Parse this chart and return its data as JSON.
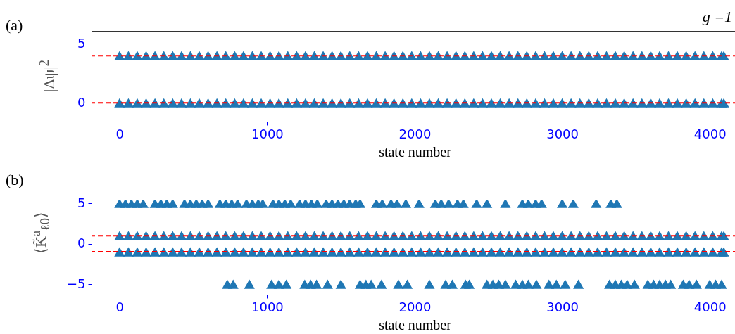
{
  "chart_data": [
    {
      "type": "scatter",
      "title": "(a)",
      "annotations": [
        "g =1"
      ],
      "xlabel": "state number",
      "ylabel": "|Δψ|$^{2}$",
      "marker": "triangle",
      "grid": false,
      "xlim": [
        -190,
        4190
      ],
      "ylim": [
        -1.6,
        6.1
      ],
      "xticks": [
        0,
        1000,
        2000,
        3000,
        4000
      ],
      "yticks": [
        0,
        5
      ],
      "ref_lines": [
        {
          "axis": "y",
          "value": 4,
          "color": "#ff0000",
          "line_style": "dashed"
        },
        {
          "axis": "y",
          "value": 0,
          "color": "#ff0000",
          "line_style": "dashed"
        }
      ],
      "series": [
        {
          "color": "#1f77b4",
          "x": [
            0,
            60,
            120,
            180,
            240,
            300,
            360,
            420,
            480,
            540,
            600,
            660,
            720,
            780,
            840,
            900,
            960,
            1020,
            1080,
            1140,
            1200,
            1260,
            1320,
            1380,
            1440,
            1500,
            1560,
            1620,
            1680,
            1740,
            1800,
            1860,
            1920,
            1980,
            2040,
            2100,
            2160,
            2220,
            2280,
            2340,
            2400,
            2460,
            2520,
            2580,
            2640,
            2700,
            2760,
            2820,
            2880,
            2940,
            3000,
            3060,
            3120,
            3180,
            3240,
            3300,
            3360,
            3420,
            3480,
            3540,
            3600,
            3660,
            3720,
            3780,
            3840,
            3900,
            3960,
            4020,
            4080,
            4095
          ],
          "values": [
            4,
            4,
            4,
            4,
            4,
            4,
            4,
            4,
            4,
            4,
            4,
            4,
            4,
            4,
            4,
            4,
            4,
            4,
            4,
            4,
            4,
            4,
            4,
            4,
            4,
            4,
            4,
            4,
            4,
            4,
            4,
            4,
            4,
            4,
            4,
            4,
            4,
            4,
            4,
            4,
            4,
            4,
            4,
            4,
            4,
            4,
            4,
            4,
            4,
            4,
            4,
            4,
            4,
            4,
            4,
            4,
            4,
            4,
            4,
            4,
            4,
            4,
            4,
            4,
            4,
            4,
            4,
            4,
            4,
            4
          ]
        },
        {
          "color": "#1f77b4",
          "x": [
            0,
            60,
            120,
            180,
            240,
            300,
            360,
            420,
            480,
            540,
            600,
            660,
            720,
            780,
            840,
            900,
            960,
            1020,
            1080,
            1140,
            1200,
            1260,
            1320,
            1380,
            1440,
            1500,
            1560,
            1620,
            1680,
            1740,
            1800,
            1860,
            1920,
            1980,
            2040,
            2100,
            2160,
            2220,
            2280,
            2340,
            2400,
            2460,
            2520,
            2580,
            2640,
            2700,
            2760,
            2820,
            2880,
            2940,
            3000,
            3060,
            3120,
            3180,
            3240,
            3300,
            3360,
            3420,
            3480,
            3540,
            3600,
            3660,
            3720,
            3780,
            3840,
            3900,
            3960,
            4020,
            4080,
            4095
          ],
          "values": [
            0,
            0,
            0,
            0,
            0,
            0,
            0,
            0,
            0,
            0,
            0,
            0,
            0,
            0,
            0,
            0,
            0,
            0,
            0,
            0,
            0,
            0,
            0,
            0,
            0,
            0,
            0,
            0,
            0,
            0,
            0,
            0,
            0,
            0,
            0,
            0,
            0,
            0,
            0,
            0,
            0,
            0,
            0,
            0,
            0,
            0,
            0,
            0,
            0,
            0,
            0,
            0,
            0,
            0,
            0,
            0,
            0,
            0,
            0,
            0,
            0,
            0,
            0,
            0,
            0,
            0,
            0,
            0,
            0,
            0
          ]
        }
      ]
    },
    {
      "type": "scatter",
      "title": "(b)",
      "xlabel": "state number",
      "ylabel": "⟨K̃$^{a}$$_{ℓ0}$⟩",
      "marker": "triangle",
      "grid": false,
      "xlim": [
        -190,
        4190
      ],
      "ylim": [
        -6.3,
        5.45
      ],
      "xticks": [
        0,
        1000,
        2000,
        3000,
        4000
      ],
      "yticks": [
        -5,
        0,
        5
      ],
      "ref_lines": [
        {
          "axis": "y",
          "value": 1,
          "color": "#ff0000",
          "line_style": "dashed"
        },
        {
          "axis": "y",
          "value": -1,
          "color": "#ff0000",
          "line_style": "dashed"
        }
      ],
      "series": [
        {
          "color": "#1f77b4",
          "x": [
            0,
            40,
            80,
            120,
            160,
            240,
            280,
            320,
            360,
            440,
            480,
            520,
            560,
            600,
            680,
            720,
            760,
            800,
            860,
            900,
            940,
            970,
            1040,
            1080,
            1120,
            1160,
            1220,
            1260,
            1300,
            1340,
            1400,
            1440,
            1480,
            1520,
            1560,
            1600,
            1630,
            1740,
            1780,
            1840,
            1880,
            1940,
            2030,
            2140,
            2180,
            2230,
            2290,
            2330,
            2420,
            2490,
            2615,
            2730,
            2770,
            2820,
            2860,
            3000,
            3075,
            3230,
            3330,
            3370
          ],
          "values": [
            5,
            5,
            5,
            5,
            5,
            5,
            5,
            5,
            5,
            5,
            5,
            5,
            5,
            5,
            5,
            5,
            5,
            5,
            5,
            5,
            5,
            5,
            5,
            5,
            5,
            5,
            5,
            5,
            5,
            5,
            5,
            5,
            5,
            5,
            5,
            5,
            5,
            5,
            5,
            5,
            5,
            5,
            5,
            5,
            5,
            5,
            5,
            5,
            5,
            5,
            5,
            5,
            5,
            5,
            5,
            5,
            5,
            5,
            5,
            5
          ]
        },
        {
          "color": "#1f77b4",
          "x": [
            0,
            60,
            120,
            180,
            240,
            300,
            360,
            420,
            480,
            540,
            600,
            660,
            720,
            780,
            840,
            900,
            960,
            1020,
            1080,
            1140,
            1200,
            1260,
            1320,
            1380,
            1440,
            1500,
            1560,
            1620,
            1680,
            1740,
            1800,
            1860,
            1920,
            1980,
            2040,
            2100,
            2160,
            2220,
            2280,
            2340,
            2400,
            2460,
            2520,
            2580,
            2640,
            2700,
            2760,
            2820,
            2880,
            2940,
            3000,
            3060,
            3120,
            3180,
            3240,
            3300,
            3360,
            3420,
            3480,
            3540,
            3600,
            3660,
            3720,
            3780,
            3840,
            3900,
            3960,
            4020,
            4080,
            4095
          ],
          "values": [
            1,
            1,
            1,
            1,
            1,
            1,
            1,
            1,
            1,
            1,
            1,
            1,
            1,
            1,
            1,
            1,
            1,
            1,
            1,
            1,
            1,
            1,
            1,
            1,
            1,
            1,
            1,
            1,
            1,
            1,
            1,
            1,
            1,
            1,
            1,
            1,
            1,
            1,
            1,
            1,
            1,
            1,
            1,
            1,
            1,
            1,
            1,
            1,
            1,
            1,
            1,
            1,
            1,
            1,
            1,
            1,
            1,
            1,
            1,
            1,
            1,
            1,
            1,
            1,
            1,
            1,
            1,
            1,
            1,
            1
          ]
        },
        {
          "color": "#1f77b4",
          "x": [
            0,
            60,
            120,
            180,
            240,
            300,
            360,
            420,
            480,
            540,
            600,
            660,
            720,
            780,
            840,
            900,
            960,
            1020,
            1080,
            1140,
            1200,
            1260,
            1320,
            1380,
            1440,
            1500,
            1560,
            1620,
            1680,
            1740,
            1800,
            1860,
            1920,
            1980,
            2040,
            2100,
            2160,
            2220,
            2280,
            2340,
            2400,
            2460,
            2520,
            2580,
            2640,
            2700,
            2760,
            2820,
            2880,
            2940,
            3000,
            3060,
            3120,
            3180,
            3240,
            3300,
            3360,
            3420,
            3480,
            3540,
            3600,
            3660,
            3720,
            3780,
            3840,
            3900,
            3960,
            4020,
            4080,
            4095
          ],
          "values": [
            -1,
            -1,
            -1,
            -1,
            -1,
            -1,
            -1,
            -1,
            -1,
            -1,
            -1,
            -1,
            -1,
            -1,
            -1,
            -1,
            -1,
            -1,
            -1,
            -1,
            -1,
            -1,
            -1,
            -1,
            -1,
            -1,
            -1,
            -1,
            -1,
            -1,
            -1,
            -1,
            -1,
            -1,
            -1,
            -1,
            -1,
            -1,
            -1,
            -1,
            -1,
            -1,
            -1,
            -1,
            -1,
            -1,
            -1,
            -1,
            -1,
            -1,
            -1,
            -1,
            -1,
            -1,
            -1,
            -1,
            -1,
            -1,
            -1,
            -1,
            -1,
            -1,
            -1,
            -1,
            -1,
            -1,
            -1,
            -1,
            -1,
            -1
          ]
        },
        {
          "color": "#1f77b4",
          "x": [
            730,
            770,
            880,
            1030,
            1080,
            1130,
            1255,
            1295,
            1335,
            1410,
            1500,
            1630,
            1670,
            1705,
            1775,
            1890,
            1950,
            2100,
            2210,
            2255,
            2345,
            2370,
            2490,
            2530,
            2570,
            2615,
            2685,
            2730,
            2770,
            2825,
            2910,
            2960,
            3020,
            3110,
            3320,
            3360,
            3400,
            3440,
            3490,
            3580,
            3620,
            3660,
            3700,
            3735,
            3820,
            3860,
            3910,
            4000,
            4040,
            4080
          ],
          "values": [
            -5,
            -5,
            -5,
            -5,
            -5,
            -5,
            -5,
            -5,
            -5,
            -5,
            -5,
            -5,
            -5,
            -5,
            -5,
            -5,
            -5,
            -5,
            -5,
            -5,
            -5,
            -5,
            -5,
            -5,
            -5,
            -5,
            -5,
            -5,
            -5,
            -5,
            -5,
            -5,
            -5,
            -5,
            -5,
            -5,
            -5,
            -5,
            -5,
            -5,
            -5,
            -5,
            -5,
            -5,
            -5,
            -5,
            -5,
            -5,
            -5,
            -5
          ]
        }
      ]
    }
  ]
}
